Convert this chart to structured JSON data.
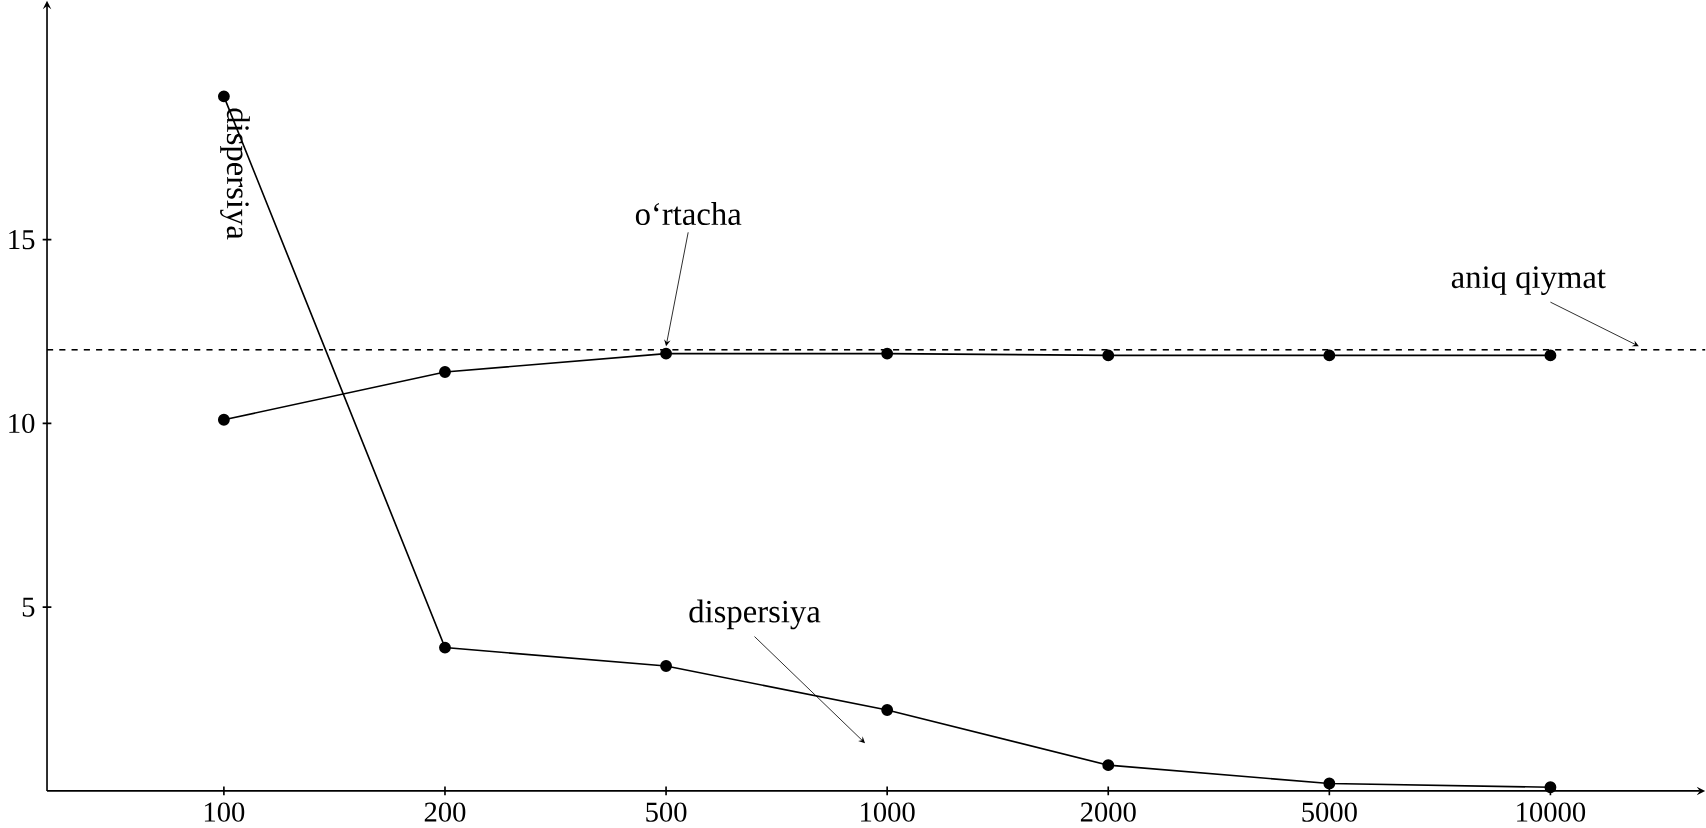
{
  "chart_data": {
    "type": "line",
    "categories": [
      "100",
      "200",
      "500",
      "1000",
      "2000",
      "5000",
      "10000"
    ],
    "series": [
      {
        "name": "o‘rtacha",
        "color": "#000000",
        "values": [
          10.1,
          11.4,
          11.9,
          11.9,
          11.85,
          11.85,
          11.85
        ]
      },
      {
        "name": "dispersiya",
        "color": "#000000",
        "values": [
          18.9,
          3.9,
          3.4,
          2.2,
          0.7,
          0.2,
          0.1
        ]
      }
    ],
    "ylim": [
      0,
      21.5
    ],
    "yticks": [
      5,
      10,
      15
    ],
    "ref_lines": [
      {
        "axis": "y",
        "value": 12,
        "label": "aniq qiymat",
        "line_style": "dashed",
        "color": "#000000"
      }
    ],
    "annotations": [
      "dispersiya"
    ],
    "marker": "circle",
    "line_style": "solid",
    "legend": false,
    "grid": false
  }
}
